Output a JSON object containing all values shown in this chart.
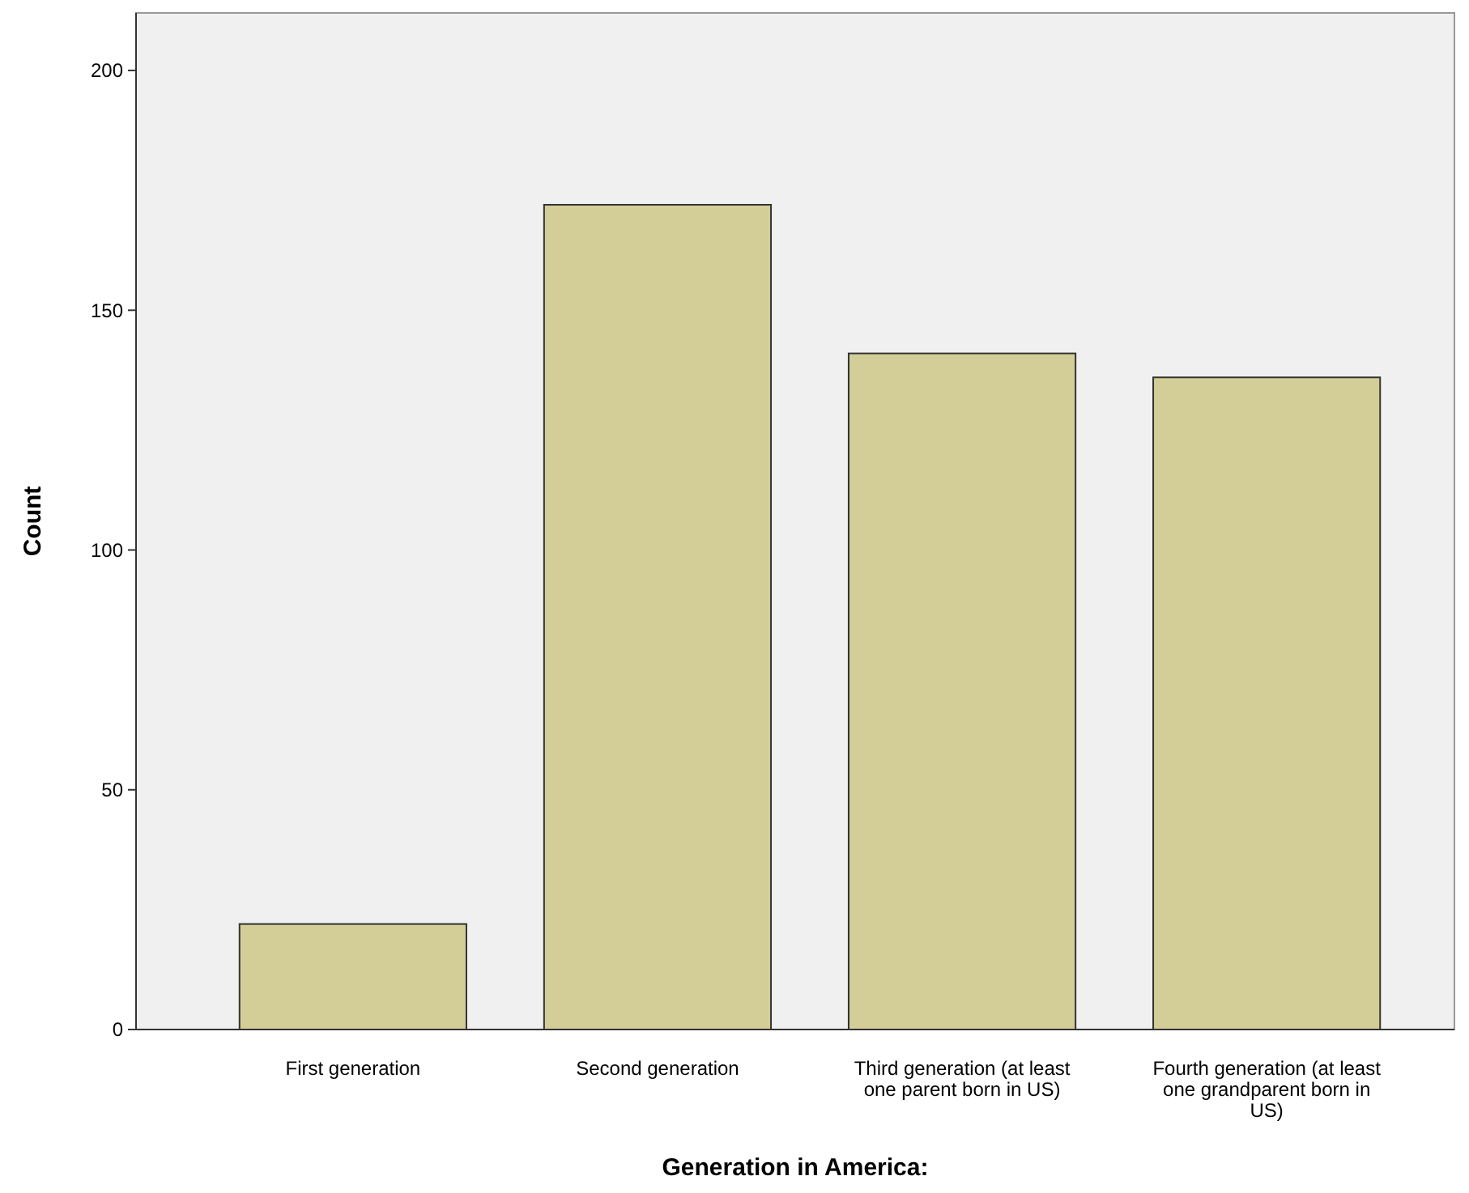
{
  "chart_data": {
    "type": "bar",
    "xlabel": "Generation in America:",
    "ylabel": "Count",
    "categories": [
      "First generation",
      "Second generation",
      "Third generation (at least one parent born in US)",
      "Fourth generation (at least one grandparent born in US)"
    ],
    "values": [
      22,
      172,
      141,
      136
    ],
    "color": "#d3ce97",
    "ylim": [
      0,
      212
    ],
    "yticks": [
      0,
      50,
      100,
      150,
      200
    ],
    "grid": false
  }
}
